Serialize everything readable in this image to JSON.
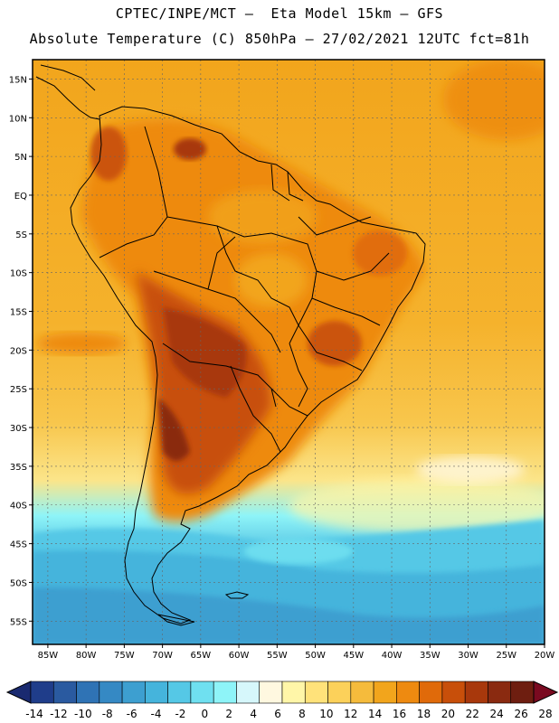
{
  "title_line1": "CPTEC/INPE/MCT –  Eta Model 15km – GFS",
  "title_line2": "Absolute Temperature (C) 850hPa – 27/02/2021 12UTC fct=81h",
  "lat_labels": [
    "15N",
    "10N",
    "5N",
    "EQ",
    "5S",
    "10S",
    "15S",
    "20S",
    "25S",
    "30S",
    "35S",
    "40S",
    "45S",
    "50S",
    "55S"
  ],
  "lat_values": [
    15,
    10,
    5,
    0,
    -5,
    -10,
    -15,
    -20,
    -25,
    -30,
    -35,
    -40,
    -45,
    -50,
    -55
  ],
  "lon_labels": [
    "85W",
    "80W",
    "75W",
    "70W",
    "65W",
    "60W",
    "55W",
    "50W",
    "45W",
    "40W",
    "35W",
    "30W",
    "25W",
    "20W"
  ],
  "lon_values": [
    -85,
    -80,
    -75,
    -70,
    -65,
    -60,
    -55,
    -50,
    -45,
    -40,
    -35,
    -30,
    -25,
    -20
  ],
  "colorbar": {
    "labels": [
      "-14",
      "-12",
      "-10",
      "-8",
      "-6",
      "-4",
      "-2",
      "0",
      "2",
      "4",
      "6",
      "8",
      "10",
      "12",
      "14",
      "16",
      "18",
      "20",
      "22",
      "24",
      "26",
      "28"
    ],
    "colors": [
      "#1f3d8a",
      "#2a5aa0",
      "#2f73b5",
      "#3589c4",
      "#3d9fd0",
      "#45b4dc",
      "#55c8e6",
      "#6fe0f0",
      "#8ef4f8",
      "#d6f7fb",
      "#fff8e0",
      "#fff6a8",
      "#ffe27a",
      "#fcd15a",
      "#f5bb3c",
      "#f2a51c",
      "#ee8a10",
      "#e06a0a",
      "#c84f0a",
      "#a8380c",
      "#8a2a10",
      "#6e1e10"
    ],
    "under_color": "#1a2a70",
    "over_color": "#7a0a20"
  }
}
